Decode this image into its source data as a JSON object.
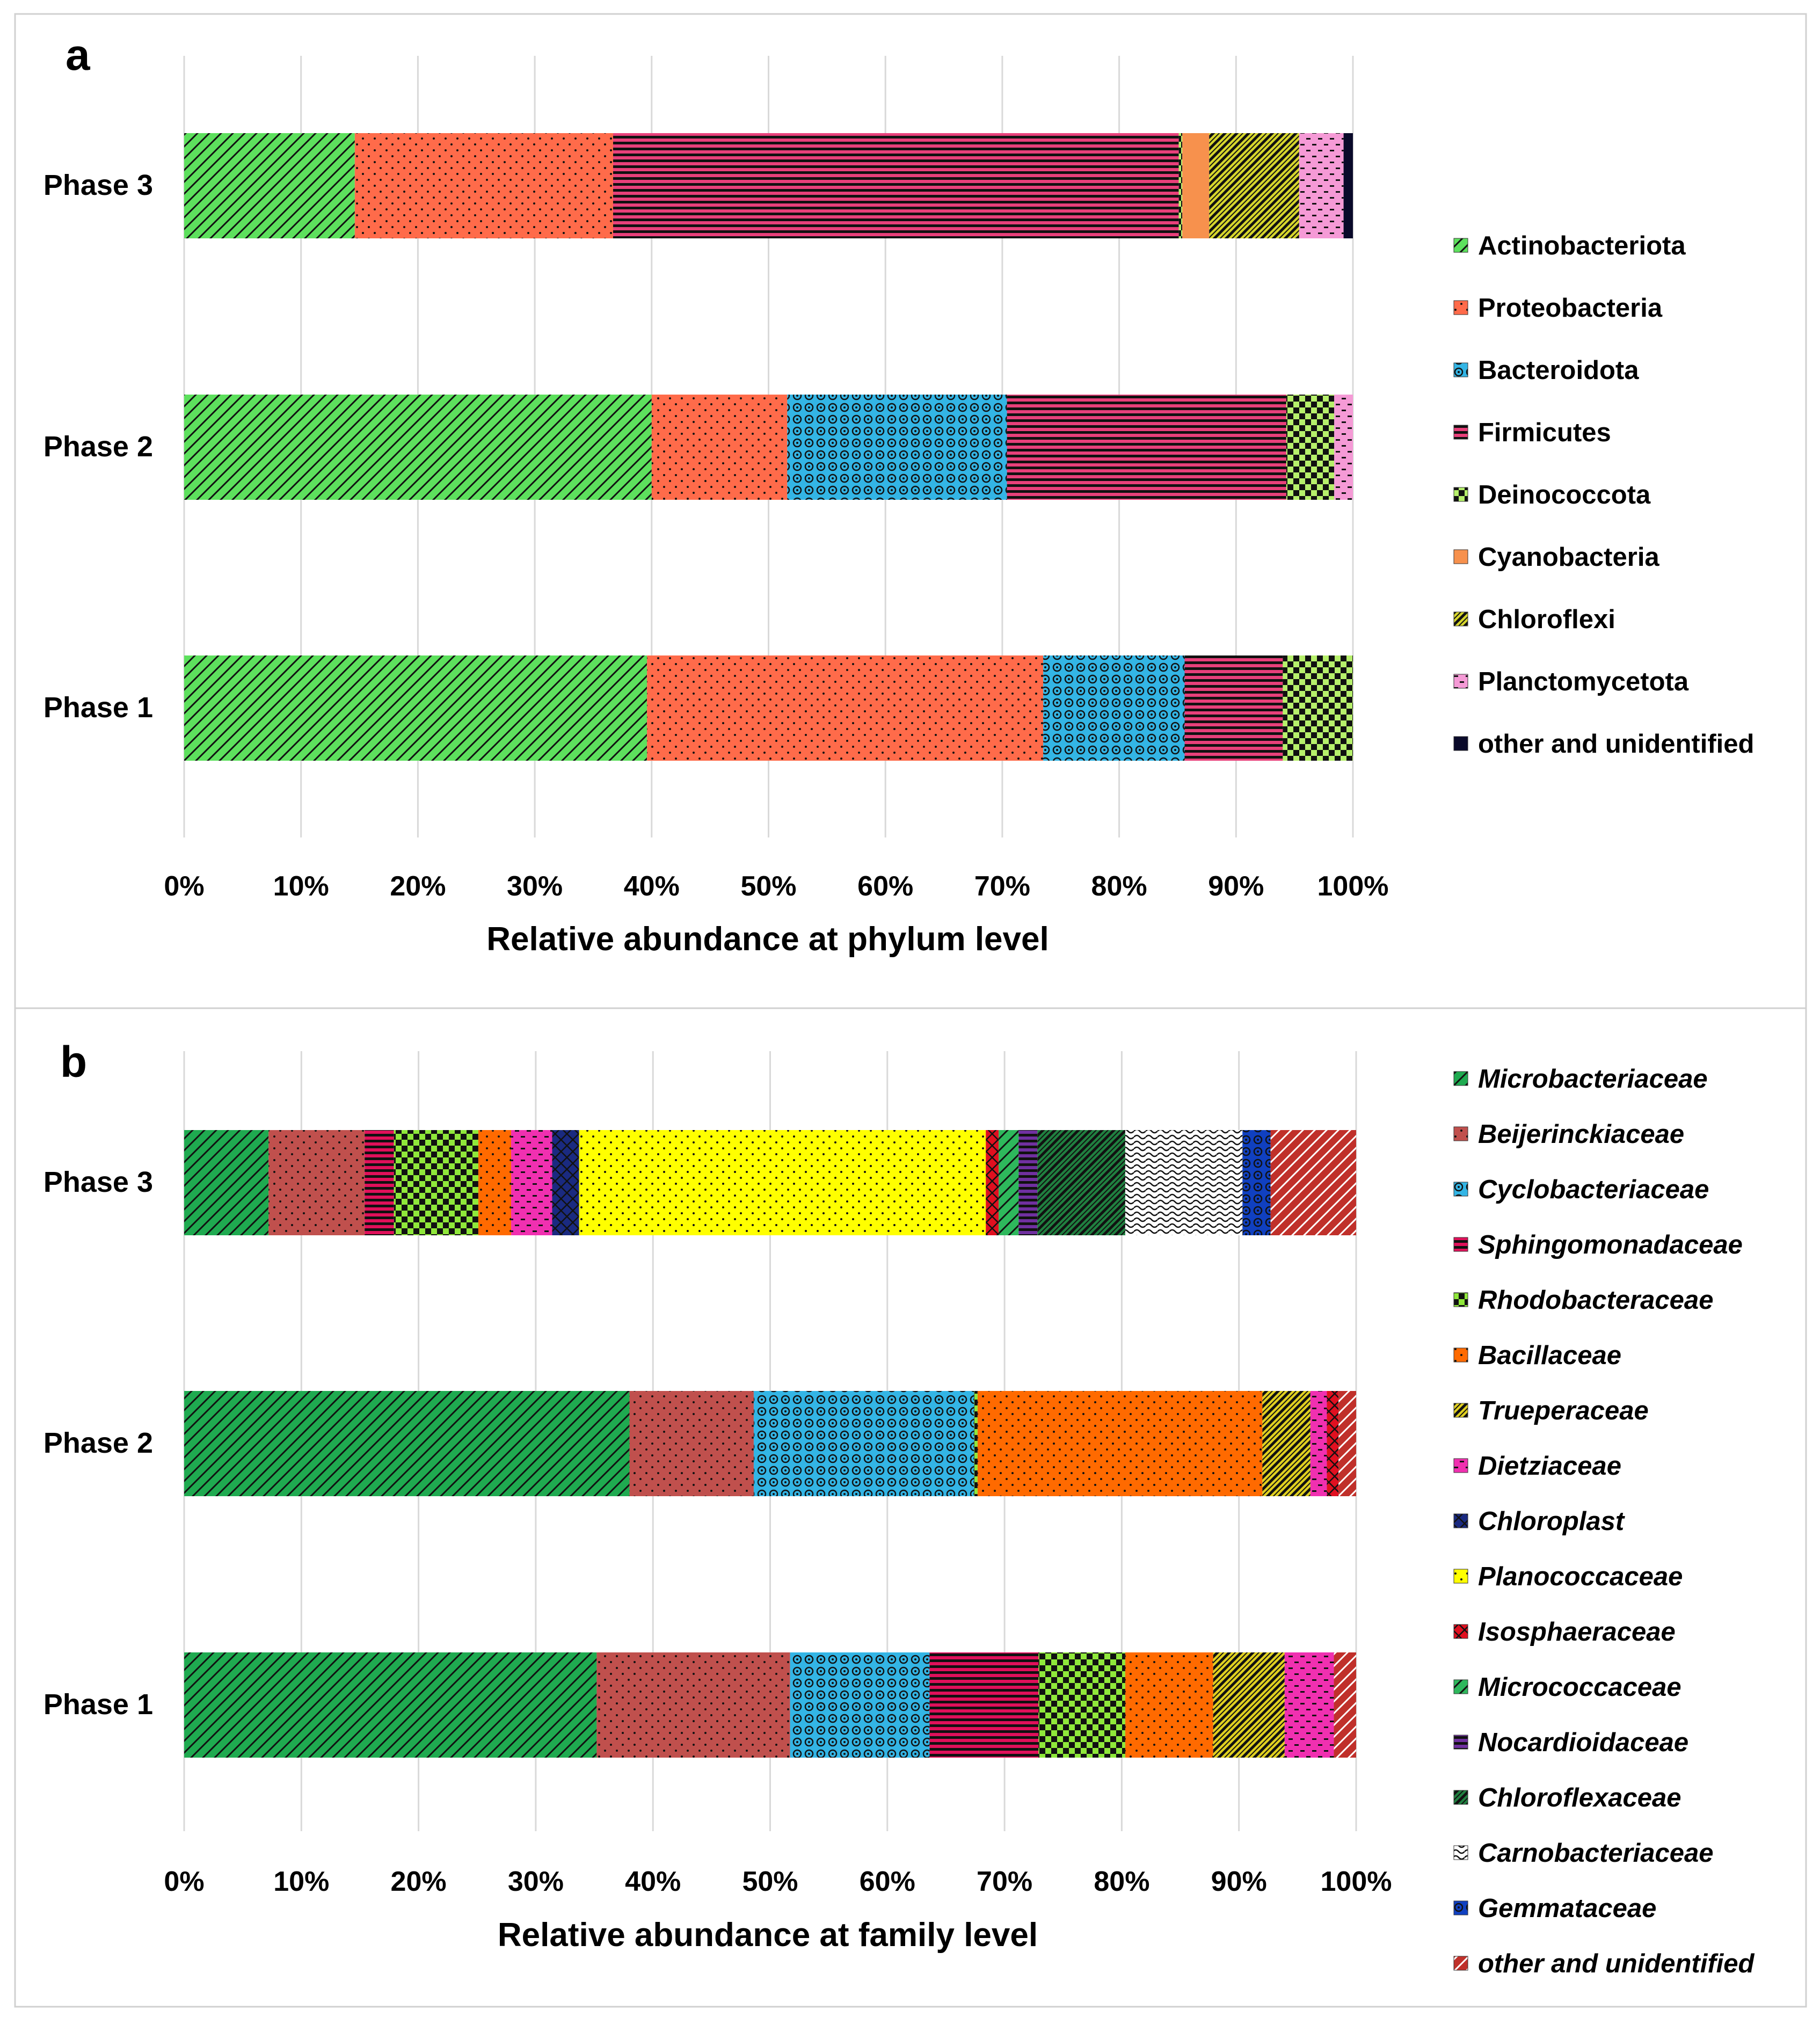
{
  "chart_data": [
    {
      "type": "bar",
      "orientation": "horizontal",
      "stacked": true,
      "panel_label": "a",
      "xlabel": "Relative abundance at phylum level",
      "xlim": [
        0,
        100
      ],
      "x_ticks": [
        "0%",
        "10%",
        "20%",
        "30%",
        "40%",
        "50%",
        "60%",
        "70%",
        "80%",
        "90%",
        "100%"
      ],
      "categories": [
        "Phase 3",
        "Phase 2",
        "Phase 1"
      ],
      "legend_italic": false,
      "series": [
        {
          "name": "Actinobacteriota",
          "color": "#5de05d",
          "pattern": "diag",
          "values": [
            14.6,
            40.0,
            39.6
          ]
        },
        {
          "name": "Proteobacteria",
          "color": "#ff6b4a",
          "pattern": "dots",
          "values": [
            22.1,
            11.6,
            33.9
          ]
        },
        {
          "name": "Bacteroidota",
          "color": "#33b5e5",
          "pattern": "circles",
          "values": [
            0,
            18.8,
            12.1
          ]
        },
        {
          "name": "Firmicutes",
          "color": "#e8407a",
          "pattern": "hstripes",
          "values": [
            48.4,
            23.9,
            8.4
          ]
        },
        {
          "name": "Deinococcota",
          "color": "#b6f06b",
          "pattern": "checker",
          "values": [
            0.3,
            4.1,
            6.0
          ]
        },
        {
          "name": "Cyanobacteria",
          "color": "#f7914d",
          "pattern": "solid",
          "values": [
            2.3,
            0,
            0
          ]
        },
        {
          "name": "Chloroflexi",
          "color": "#d6d62c",
          "pattern": "diagdense",
          "values": [
            7.7,
            0,
            0
          ]
        },
        {
          "name": "Planctomycetota",
          "color": "#f59ad6",
          "pattern": "dashes",
          "values": [
            3.8,
            1.6,
            0
          ]
        },
        {
          "name": "other and unidentified",
          "color": "#0a0a2a",
          "pattern": "solid",
          "values": [
            0.8,
            0,
            0
          ]
        }
      ]
    },
    {
      "type": "bar",
      "orientation": "horizontal",
      "stacked": true,
      "panel_label": "b",
      "xlabel": "Relative abundance at family level",
      "xlim": [
        0,
        100
      ],
      "x_ticks": [
        "0%",
        "10%",
        "20%",
        "30%",
        "40%",
        "50%",
        "60%",
        "70%",
        "80%",
        "90%",
        "100%"
      ],
      "categories": [
        "Phase 3",
        "Phase 2",
        "Phase 1"
      ],
      "legend_italic": true,
      "series": [
        {
          "name": "Microbacteriaceae",
          "color": "#1faa50",
          "pattern": "diag",
          "values": [
            7.2,
            38.0,
            35.2
          ]
        },
        {
          "name": "Beijerinckiaceae",
          "color": "#c0504d",
          "pattern": "dots",
          "values": [
            8.2,
            10.6,
            16.5
          ]
        },
        {
          "name": "Cyclobacteriaceae",
          "color": "#33b5e5",
          "pattern": "circles",
          "values": [
            0,
            18.8,
            11.9
          ]
        },
        {
          "name": "Sphingomonadaceae",
          "color": "#e0105a",
          "pattern": "hstripes",
          "values": [
            2.5,
            0,
            9.3
          ]
        },
        {
          "name": "Rhodobacteraceae",
          "color": "#8fe83a",
          "pattern": "checker",
          "values": [
            7.2,
            0.3,
            7.4
          ]
        },
        {
          "name": "Bacillaceae",
          "color": "#ff6a00",
          "pattern": "dots",
          "values": [
            2.8,
            24.3,
            7.5
          ]
        },
        {
          "name": "Trueperaceae",
          "color": "#e0d020",
          "pattern": "diagdense",
          "values": [
            0,
            4.1,
            6.1
          ]
        },
        {
          "name": "Dietziaceae",
          "color": "#f030b0",
          "pattern": "dashes",
          "values": [
            3.5,
            1.4,
            4.2
          ]
        },
        {
          "name": "Chloroplast",
          "color": "#1a2a80",
          "pattern": "cross",
          "values": [
            2.3,
            0,
            0
          ]
        },
        {
          "name": "Planococcaceae",
          "color": "#ffff00",
          "pattern": "dots",
          "values": [
            34.7,
            0,
            0
          ]
        },
        {
          "name": "Isosphaeraceae",
          "color": "#e01020",
          "pattern": "cross",
          "values": [
            1.1,
            1.0,
            0
          ]
        },
        {
          "name": "Micrococcaceae",
          "color": "#2eb85c",
          "pattern": "diag",
          "values": [
            1.7,
            0,
            0
          ]
        },
        {
          "name": "Nocardioidaceae",
          "color": "#7030a0",
          "pattern": "hstripes",
          "values": [
            1.6,
            0,
            0
          ]
        },
        {
          "name": "Chloroflexaceae",
          "color": "#208040",
          "pattern": "diagdense",
          "values": [
            7.5,
            0,
            0
          ]
        },
        {
          "name": "Carnobacteriaceae",
          "color": "#ffffff",
          "pattern": "waves",
          "values": [
            10.0,
            0,
            0
          ]
        },
        {
          "name": "Gemmataceae",
          "color": "#1040c0",
          "pattern": "circles",
          "values": [
            2.4,
            0,
            0
          ]
        },
        {
          "name": "other and unidentified",
          "color": "#c0302a",
          "pattern": "diagred",
          "values": [
            7.3,
            1.5,
            1.9
          ]
        }
      ]
    }
  ]
}
